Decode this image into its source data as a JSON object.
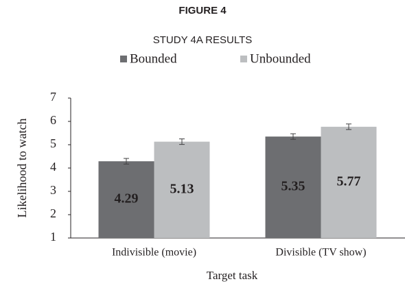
{
  "chart_data": {
    "type": "bar",
    "title": "FIGURE 4",
    "subtitle": "STUDY 4A RESULTS",
    "categories": [
      "Indivisible (movie)",
      "Divisible (TV show)"
    ],
    "series": [
      {
        "name": "Bounded",
        "color": "#6d6e71",
        "values": [
          4.29,
          5.35
        ],
        "errors": [
          0.12,
          0.12
        ]
      },
      {
        "name": "Unbounded",
        "color": "#bcbec0",
        "values": [
          5.13,
          5.77
        ],
        "errors": [
          0.12,
          0.12
        ]
      }
    ],
    "xlabel": "Target task",
    "ylabel": "Likelihood to watch",
    "ylim": [
      1,
      7
    ],
    "yticks": [
      1,
      2,
      3,
      4,
      5,
      6,
      7
    ],
    "grid": false,
    "legend": "top"
  }
}
